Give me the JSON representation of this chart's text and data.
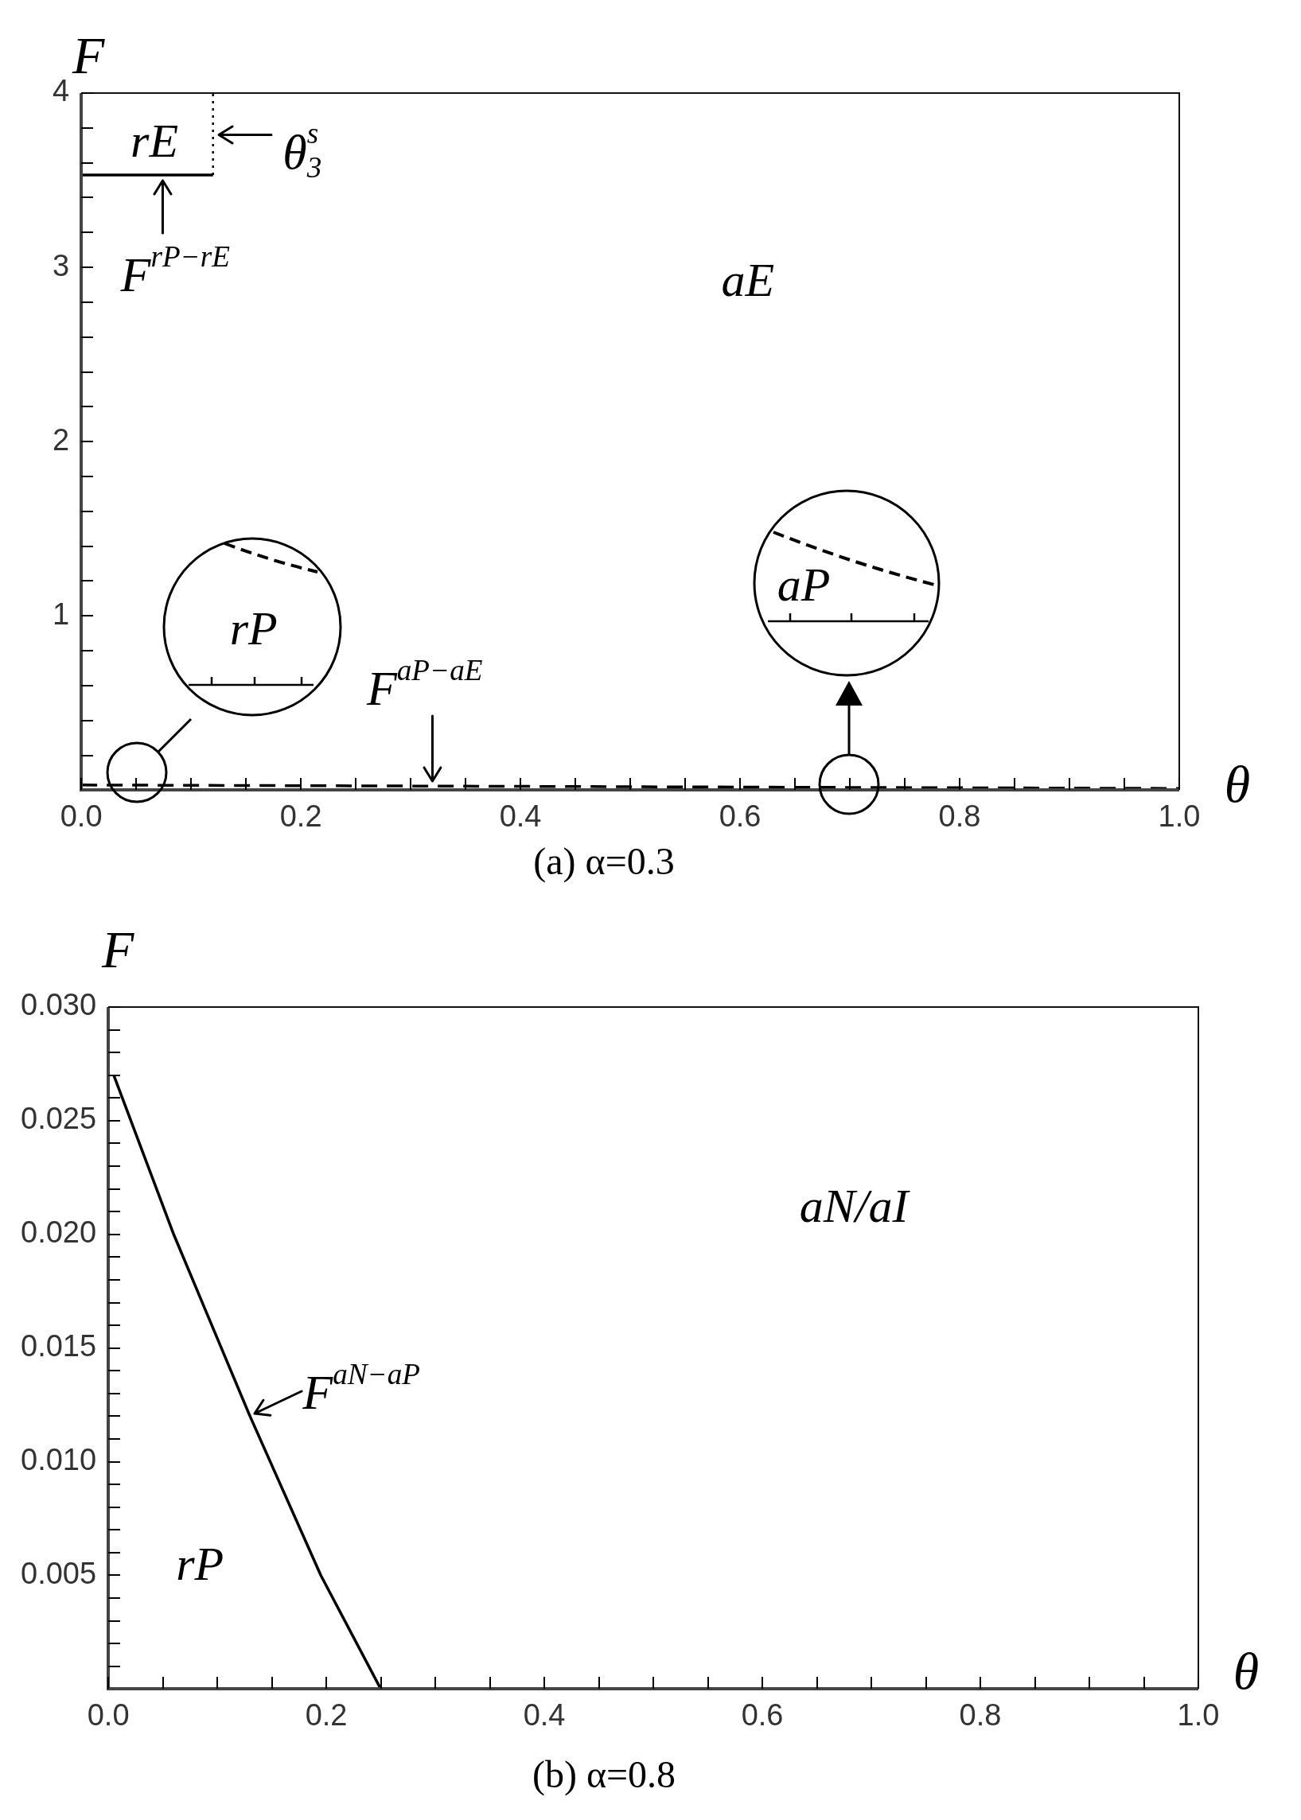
{
  "chart_data": [
    {
      "type": "line",
      "title": "(a) α=0.3",
      "xlabel": "θ",
      "ylabel": "F",
      "xlim": [
        0,
        1
      ],
      "xticks": [
        {
          "value": 0,
          "label": "0.0"
        },
        {
          "value": 0.05,
          "label": null
        },
        {
          "value": 0.1,
          "label": null
        },
        {
          "value": 0.15,
          "label": null
        },
        0.2,
        {
          "value": 0.25,
          "label": null
        },
        {
          "value": 0.3,
          "label": null
        },
        {
          "value": 0.35,
          "label": null
        },
        0.4,
        {
          "value": 0.45,
          "label": null
        },
        {
          "value": 0.5,
          "label": null
        },
        {
          "value": 0.55,
          "label": null
        },
        0.6,
        {
          "value": 0.65,
          "label": null
        },
        {
          "value": 0.7,
          "label": null
        },
        {
          "value": 0.75,
          "label": null
        },
        0.8,
        {
          "value": 0.85,
          "label": null
        },
        {
          "value": 0.9,
          "label": null
        },
        {
          "value": 0.95,
          "label": null
        },
        {
          "value": 1,
          "label": "1.0"
        }
      ],
      "ylim": [
        0,
        4
      ],
      "yticks": [
        {
          "value": 0.2,
          "label": null
        },
        {
          "value": 0.4,
          "label": null
        },
        {
          "value": 0.6,
          "label": null
        },
        {
          "value": 0.8,
          "label": null
        },
        1,
        {
          "value": 1.2,
          "label": null
        },
        {
          "value": 1.4,
          "label": null
        },
        {
          "value": 1.6,
          "label": null
        },
        {
          "value": 1.8,
          "label": null
        },
        2,
        {
          "value": 2.2,
          "label": null
        },
        {
          "value": 2.4,
          "label": null
        },
        {
          "value": 2.6,
          "label": null
        },
        {
          "value": 2.8,
          "label": null
        },
        3,
        {
          "value": 3.2,
          "label": null
        },
        {
          "value": 3.4,
          "label": null
        },
        {
          "value": 3.6,
          "label": null
        },
        {
          "value": 3.8,
          "label": null
        },
        4
      ],
      "series": [
        {
          "color": "#000000",
          "line_style": "solid",
          "x": [
            0,
            0.12
          ],
          "values": [
            3.53,
            3.53
          ]
        },
        {
          "color": "#000000",
          "line_style": "dotted",
          "x": [
            0.12,
            0.12
          ],
          "values": [
            3.53,
            4
          ]
        },
        {
          "color": "#000000",
          "line_style": "dashed",
          "x": [
            0,
            0.5,
            1
          ],
          "values": [
            0.03,
            0.02,
            0.01
          ]
        }
      ],
      "annotations": [
        "rE",
        "aE",
        "rP",
        "aP",
        {
          "text": "F$^{rP−rE}$",
          "x": 0.074,
          "y": 3.53
        },
        {
          "text": "θ$_{3}$$^{s}$",
          "x": 0.12,
          "y": 3.76
        },
        {
          "text": "F$^{aP−aE}$",
          "x": 0.32,
          "y": 0.024
        }
      ]
    },
    {
      "type": "line",
      "title": "(b) α=0.8",
      "xlabel": "θ",
      "ylabel": "F",
      "xlim": [
        0,
        1
      ],
      "xticks": [
        {
          "value": 0,
          "label": "0.0"
        },
        {
          "value": 0.05,
          "label": null
        },
        {
          "value": 0.1,
          "label": null
        },
        {
          "value": 0.15,
          "label": null
        },
        0.2,
        {
          "value": 0.25,
          "label": null
        },
        {
          "value": 0.3,
          "label": null
        },
        {
          "value": 0.35,
          "label": null
        },
        0.4,
        {
          "value": 0.45,
          "label": null
        },
        {
          "value": 0.5,
          "label": null
        },
        {
          "value": 0.55,
          "label": null
        },
        0.6,
        {
          "value": 0.65,
          "label": null
        },
        {
          "value": 0.7,
          "label": null
        },
        {
          "value": 0.75,
          "label": null
        },
        0.8,
        {
          "value": 0.85,
          "label": null
        },
        {
          "value": 0.9,
          "label": null
        },
        {
          "value": 0.95,
          "label": null
        },
        {
          "value": 1,
          "label": "1.0"
        }
      ],
      "ylim": [
        0,
        0.03
      ],
      "yticks": [
        {
          "value": 0.001,
          "label": null
        },
        {
          "value": 0.002,
          "label": null
        },
        {
          "value": 0.003,
          "label": null
        },
        {
          "value": 0.004,
          "label": null
        },
        0.005,
        {
          "value": 0.006,
          "label": null
        },
        {
          "value": 0.007,
          "label": null
        },
        {
          "value": 0.008,
          "label": null
        },
        {
          "value": 0.009,
          "label": null
        },
        {
          "value": 0.01,
          "label": "0.010"
        },
        {
          "value": 0.011,
          "label": null
        },
        {
          "value": 0.012,
          "label": null
        },
        {
          "value": 0.013,
          "label": null
        },
        {
          "value": 0.014,
          "label": null
        },
        0.015,
        {
          "value": 0.016,
          "label": null
        },
        {
          "value": 0.017,
          "label": null
        },
        {
          "value": 0.018,
          "label": null
        },
        {
          "value": 0.019,
          "label": null
        },
        {
          "value": 0.02,
          "label": "0.020"
        },
        {
          "value": 0.021,
          "label": null
        },
        {
          "value": 0.022,
          "label": null
        },
        {
          "value": 0.023,
          "label": null
        },
        {
          "value": 0.024,
          "label": null
        },
        0.025,
        {
          "value": 0.026,
          "label": null
        },
        {
          "value": 0.027,
          "label": null
        },
        {
          "value": 0.028,
          "label": null
        },
        {
          "value": 0.029,
          "label": null
        },
        {
          "value": 0.03,
          "label": "0.030"
        }
      ],
      "series": [
        {
          "color": "#000000",
          "line_style": "solid",
          "x": [
            0.005,
            0.06,
            0.13,
            0.195,
            0.25
          ],
          "values": [
            0.027,
            0.02,
            0.012,
            0.005,
            0
          ]
        }
      ],
      "annotations": [
        "aN/aI",
        "rP",
        {
          "text": "F$^{aN−aP}$",
          "x": 0.13,
          "y": 0.012
        }
      ]
    }
  ]
}
